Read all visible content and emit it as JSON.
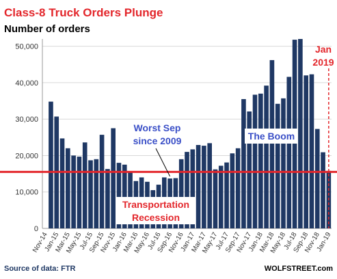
{
  "chart_data": {
    "type": "bar",
    "title": "Class-8 Truck Orders Plunge",
    "subtitle": "Number of orders",
    "categories": [
      "Nov-14",
      null,
      "Jan-15",
      null,
      "Mar-15",
      null,
      "May-15",
      null,
      "Jul-15",
      null,
      "Sep-15",
      null,
      "Nov-15",
      null,
      "Jan-16",
      null,
      "Mar-16",
      null,
      "May-16",
      null,
      "Jul-16",
      null,
      "Sep-16",
      null,
      "Nov-16",
      null,
      "Jan-17",
      null,
      "Mar-17",
      null,
      "May-17",
      null,
      "Jul-17",
      null,
      "Sep-17",
      null,
      "Nov-17",
      null,
      "Jan-18",
      null,
      "Mar-18",
      null,
      "May-18",
      null,
      "Jul-18",
      null,
      "Sep-18",
      null,
      "Nov-18",
      null,
      "Jan-19"
    ],
    "values": [
      null,
      34800,
      30700,
      24700,
      22000,
      20000,
      19700,
      23600,
      18700,
      19000,
      25700,
      16300,
      27500,
      18000,
      17500,
      15700,
      13000,
      14000,
      12800,
      10500,
      12000,
      14000,
      13700,
      13800,
      19000,
      21000,
      21700,
      22900,
      22700,
      23400,
      16200,
      17200,
      18100,
      20600,
      22000,
      35500,
      32100,
      36700,
      37000,
      39200,
      46200,
      34200,
      35700,
      41600,
      51800,
      52000,
      42000,
      42300,
      27300,
      20900,
      15800
    ],
    "color": "#1f3864",
    "ylim": [
      0,
      52000
    ],
    "yticks": [
      0,
      {
        "value": 10000,
        "label": "10,000"
      },
      {
        "value": 20000,
        "label": "20,000"
      },
      {
        "value": 30000,
        "label": "30,000"
      },
      {
        "value": 40000,
        "label": "40,000"
      },
      {
        "value": 50000,
        "label": "50,000"
      }
    ],
    "grid": true,
    "reference_line": 15500,
    "annotations": {
      "worst_sep": [
        "Worst Sep",
        "since 2009"
      ],
      "boom": "The Boom",
      "recession": [
        "Transportation",
        "Recession"
      ],
      "jan_2019": [
        "Jan",
        "2019"
      ]
    },
    "source": "Source of data: FTR",
    "credit": "WOLFSTREET.com"
  }
}
